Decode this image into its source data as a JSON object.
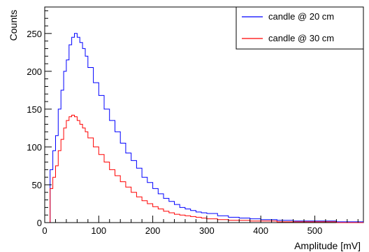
{
  "chart_data": {
    "type": "line",
    "style": "step-histogram",
    "xlabel": "Amplitude [mV]",
    "ylabel": "Counts",
    "xlim": [
      0,
      590
    ],
    "ylim": [
      0,
      285
    ],
    "x_ticks": [
      0,
      100,
      200,
      300,
      400,
      500
    ],
    "y_ticks": [
      0,
      50,
      100,
      150,
      200,
      250
    ],
    "grid": false,
    "legend_position": "top-right",
    "series": [
      {
        "name": "candle @ 20 cm",
        "color": "#0000ff",
        "x": [
          0,
          5,
          8,
          10,
          15,
          20,
          25,
          30,
          35,
          40,
          45,
          50,
          55,
          60,
          65,
          70,
          75,
          80,
          90,
          100,
          110,
          120,
          130,
          140,
          150,
          160,
          170,
          180,
          190,
          200,
          210,
          220,
          230,
          240,
          250,
          260,
          270,
          280,
          290,
          300,
          320,
          340,
          360,
          380,
          400,
          430,
          460,
          500,
          540,
          590
        ],
        "y": [
          0,
          0,
          0,
          70,
          95,
          115,
          150,
          175,
          200,
          215,
          235,
          245,
          250,
          245,
          238,
          230,
          220,
          205,
          185,
          168,
          150,
          135,
          120,
          105,
          92,
          82,
          72,
          60,
          53,
          45,
          38,
          32,
          28,
          24,
          20,
          18,
          16,
          14,
          13,
          12,
          9,
          7,
          6,
          5,
          4,
          3,
          2,
          2,
          1,
          1
        ]
      },
      {
        "name": "candle @ 30 cm",
        "color": "#ff0000",
        "x": [
          0,
          5,
          8,
          10,
          15,
          20,
          25,
          30,
          35,
          40,
          45,
          50,
          55,
          60,
          65,
          70,
          75,
          80,
          90,
          100,
          110,
          120,
          130,
          140,
          150,
          160,
          170,
          180,
          190,
          200,
          210,
          220,
          230,
          240,
          250,
          260,
          270,
          280,
          290,
          300,
          320,
          340,
          360,
          380,
          400,
          430,
          460,
          500,
          540,
          590
        ],
        "y": [
          0,
          0,
          0,
          45,
          60,
          75,
          95,
          110,
          125,
          135,
          140,
          142,
          140,
          135,
          130,
          125,
          120,
          112,
          100,
          90,
          80,
          70,
          62,
          54,
          47,
          40,
          34,
          29,
          25,
          21,
          18,
          15,
          13,
          11,
          10,
          9,
          8,
          7,
          6,
          5,
          4,
          3,
          3,
          2,
          2,
          1,
          1,
          1,
          0,
          0
        ]
      }
    ]
  }
}
